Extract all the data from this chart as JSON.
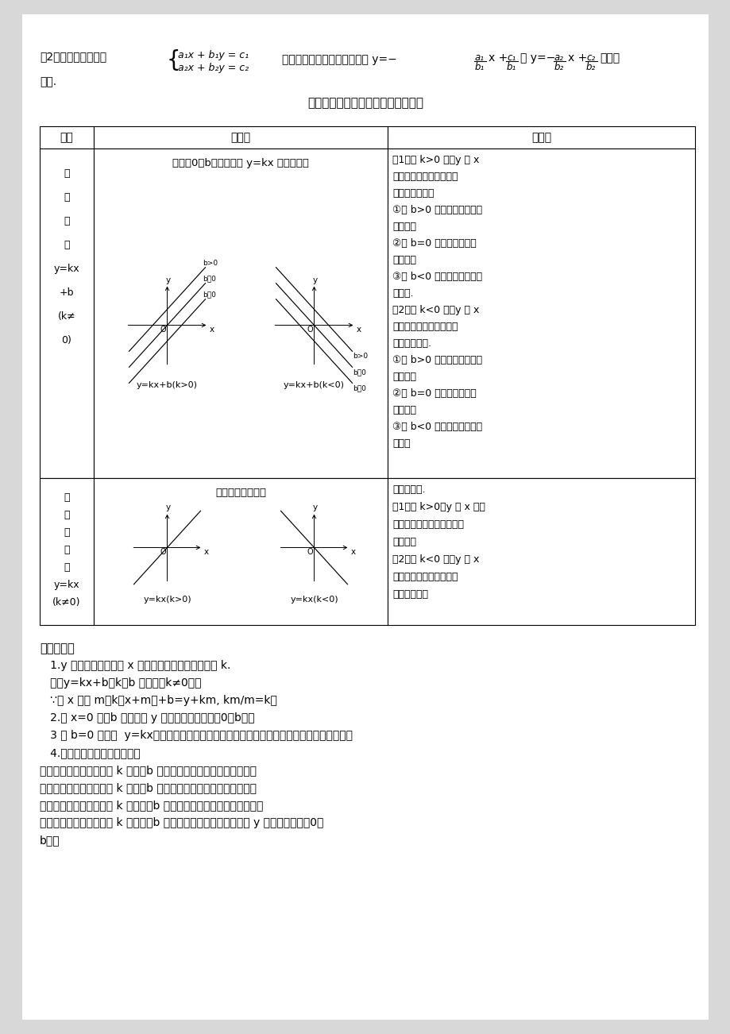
{
  "page_bg": "#ffffff",
  "outer_bg": "#e8e8e8",
  "top_text1": "(2) 二元一次方程组",
  "top_text2": "的解可以看作是两个一次函数 y=−",
  "top_text3": "和 y=−",
  "top_text4": "的图象",
  "交点": "交点.",
  "section_title": "一次函数和正比例函数的图象和性质",
  "col0_header": "函数",
  "col1_header": "图　象",
  "col2_header": "性　质",
  "row1_func": [
    "一",
    "次",
    "函",
    "数",
    "y=kx",
    "+b",
    "(k≠",
    "0)"
  ],
  "row1_img_title": "过点（0，b）且平行于 y=kx 的一条直线",
  "row1_prop": [
    "（1）当 k>0 时，y 随 x",
    "的增大而增大，图象必过",
    "第一、三象限；",
    "①当 b>0 时，过第一、二、",
    "三象限；",
    "②当 b=0 时，只过第一、",
    "三象限；",
    "③当 b<0 时，过第一、三、",
    "四象限.",
    "（2）当 k<0 时，y 随 x",
    "的增大而减小，图象必过",
    "第二、四象限.",
    "①当 b>0 时，过第一、二、",
    "四象限；",
    "②当 b=0 时，只过第二、",
    "四象限；",
    "③当 b<0 时，过第二、三、",
    "四象限"
  ],
  "row2_func": [
    "正",
    "比",
    "例",
    "函",
    "数",
    "y=kx",
    "(k≠0)"
  ],
  "row2_img_title": "过原点的一条直线",
  "row2_prop": [
    "图象过原点.",
    "（1）当 k>0，y 随 x 的增",
    "大而增大，图象必过第一、",
    "三象限；",
    "（2）当 k<0 时，y 随 x",
    "的增大而减小，图象必过",
    "第二、四象限"
  ],
  "bottom_title": "函数性质：",
  "bottom_lines": [
    "   1.y 的变化值与对应的 x 的变化值成正比例，比值为 k.",
    "   即：y=kx+b（k，b 为常数，k≠0），",
    "   ∵当 x 增加 m，k（x+m）+b=y+km, km/m=k。",
    "   2.当 x=0 时，b 为函数在 y 轴上的点，坐标为（0，b）。",
    "   3 当 b=0 时（即  y=kx），一次函数图像变为正比例函数，正比例函数是特殊的一次函数。",
    "   4.在两个一次函数表达式中：",
    "当两一次函数表达式中的 k 相同，b 也相同时，两一次函数图像重合；",
    "当两一次函数表达式中的 k 相同，b 不相同时，两一次函数图像平行；",
    "当两一次函数表达式中的 k 不相同，b 不相同时，两一次函数图像相交；",
    "当两一次函数表达式中的 k 不相同，b 相同时，两一次函数图像交于 y 轴上的同一点（0，",
    "b）。"
  ]
}
